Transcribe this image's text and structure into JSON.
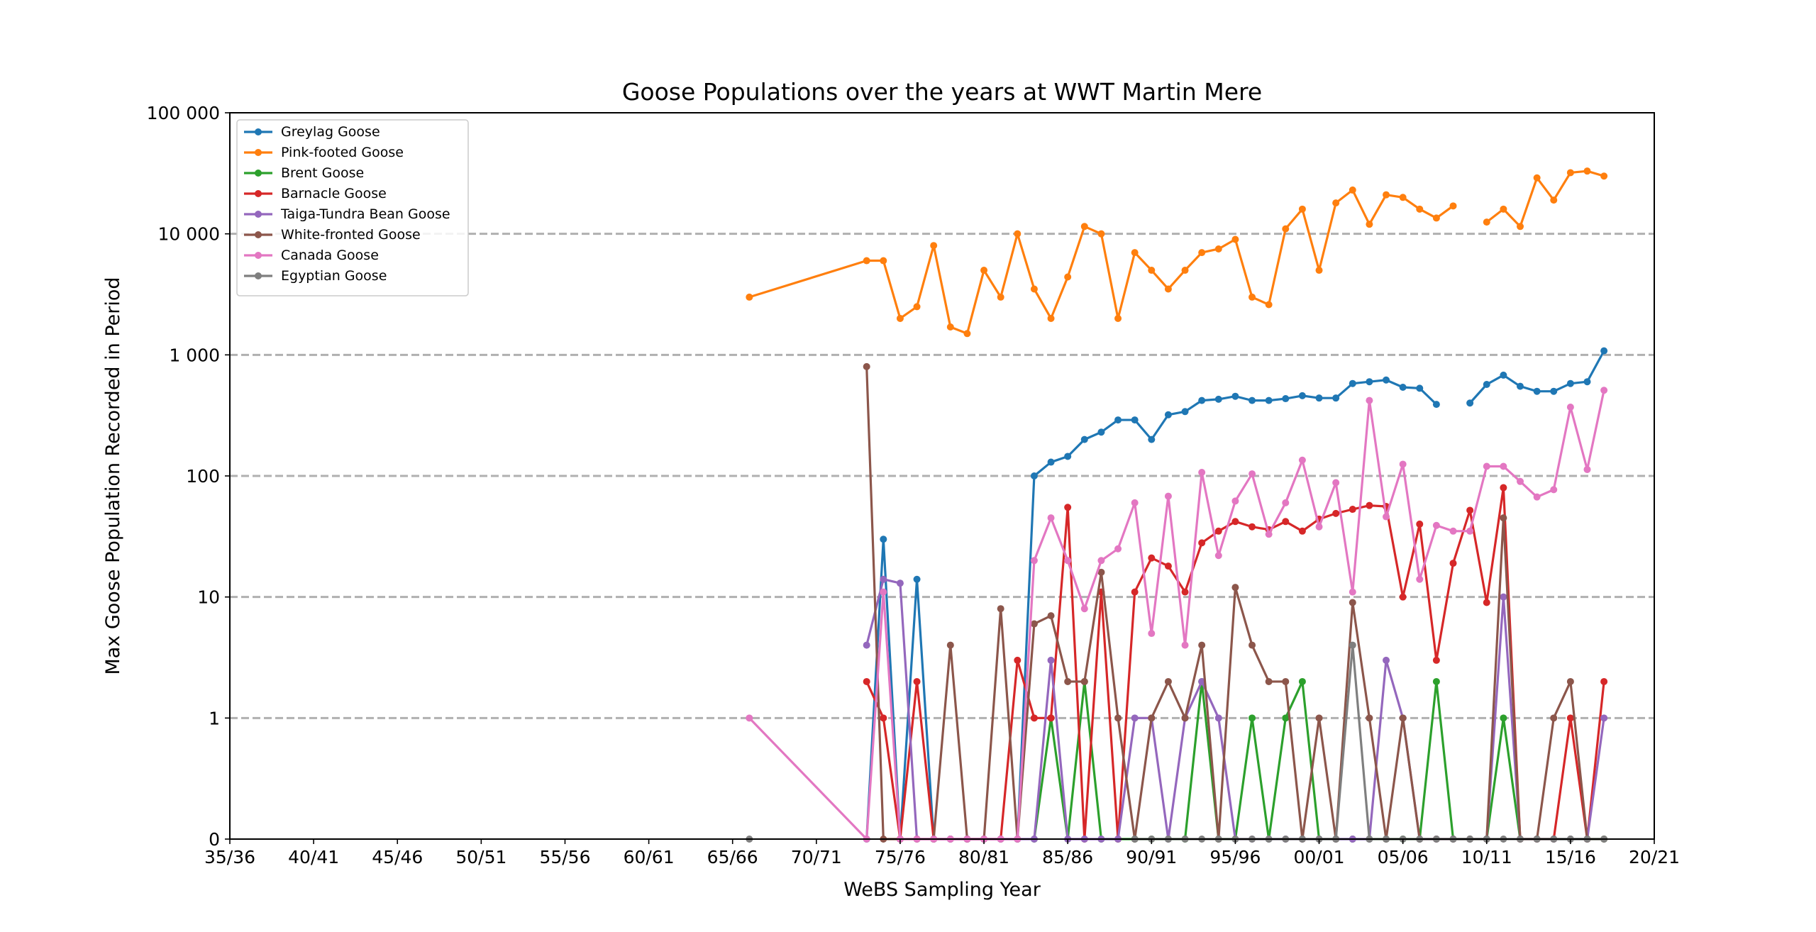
{
  "chart_data": {
    "type": "line",
    "title": "Goose Populations over the years at WWT Martin Mere",
    "xlabel": "WeBS Sampling Year",
    "ylabel": "Max Goose Population Recorded in Period",
    "x_tick_labels": [
      "35/36",
      "40/41",
      "45/46",
      "50/51",
      "55/56",
      "60/61",
      "65/66",
      "70/71",
      "75/76",
      "80/81",
      "85/86",
      "90/91",
      "95/96",
      "00/01",
      "05/06",
      "10/11",
      "15/16",
      "20/21"
    ],
    "x_range": [
      1935,
      2020
    ],
    "y_scale": "symlog",
    "y_ticks": [
      0,
      1,
      10,
      100,
      1000,
      10000,
      100000
    ],
    "y_tick_labels": [
      "0",
      "1",
      "10",
      "100",
      "1 000",
      "10 000",
      "100 000"
    ],
    "grid": "horizontal-dashed",
    "legend_position": "top-left",
    "x": [
      1966,
      1973,
      1974,
      1975,
      1976,
      1977,
      1978,
      1979,
      1980,
      1981,
      1982,
      1983,
      1984,
      1985,
      1986,
      1987,
      1988,
      1989,
      1990,
      1991,
      1992,
      1993,
      1994,
      1995,
      1996,
      1997,
      1998,
      1999,
      2000,
      2001,
      2002,
      2003,
      2004,
      2005,
      2006,
      2007,
      2008,
      2009,
      2010,
      2011,
      2012,
      2013,
      2014,
      2015,
      2016,
      2017
    ],
    "series": [
      {
        "name": "Greylag Goose",
        "color": "#1f77b4",
        "values": [
          null,
          0,
          30,
          0,
          14,
          0,
          0,
          0,
          0,
          0,
          0,
          100,
          130,
          145,
          200,
          230,
          290,
          290,
          200,
          320,
          340,
          420,
          430,
          455,
          420,
          420,
          435,
          460,
          440,
          440,
          580,
          600,
          620,
          540,
          530,
          390,
          null,
          400,
          570,
          680,
          550,
          500,
          500,
          580,
          600,
          1080
        ]
      },
      {
        "name": "Pink-footed Goose",
        "color": "#ff7f0e",
        "values": [
          3000,
          6000,
          6000,
          2000,
          2500,
          8000,
          1700,
          1500,
          5000,
          3000,
          10000,
          3500,
          2000,
          4400,
          11500,
          10000,
          2000,
          7000,
          5000,
          3500,
          5000,
          7000,
          7500,
          9000,
          3000,
          2600,
          11000,
          16000,
          5000,
          18000,
          23000,
          12000,
          21000,
          20000,
          16000,
          13500,
          17000,
          null,
          12500,
          16000,
          11500,
          29000,
          19000,
          32000,
          33000,
          30000
        ]
      },
      {
        "name": "Brent Goose",
        "color": "#2ca02c",
        "values": [
          null,
          null,
          null,
          null,
          null,
          null,
          null,
          null,
          null,
          null,
          null,
          0,
          1,
          0,
          2,
          0,
          0,
          0,
          0,
          0,
          0,
          2,
          0,
          0,
          1,
          0,
          1,
          2,
          0,
          0,
          0,
          0,
          0,
          0,
          0,
          2,
          0,
          0,
          0,
          1,
          0,
          0,
          0,
          0,
          0,
          0
        ]
      },
      {
        "name": "Barnacle Goose",
        "color": "#d62728",
        "values": [
          null,
          2,
          1,
          0,
          2,
          0,
          0,
          0,
          0,
          0,
          3,
          1,
          1,
          55,
          0,
          11,
          0,
          11,
          21,
          18,
          11,
          28,
          35,
          42,
          38,
          36,
          42,
          35,
          44,
          49,
          53,
          57,
          56,
          10,
          40,
          3,
          19,
          52,
          9,
          80,
          0,
          0,
          0,
          1,
          0,
          2
        ]
      },
      {
        "name": "Taiga-Tundra Bean Goose",
        "color": "#9467bd",
        "values": [
          null,
          4,
          14,
          13,
          0,
          0,
          0,
          0,
          0,
          0,
          0,
          0,
          3,
          0,
          0,
          0,
          0,
          1,
          1,
          0,
          1,
          2,
          1,
          0,
          0,
          0,
          0,
          0,
          0,
          0,
          0,
          0,
          3,
          1,
          0,
          0,
          0,
          0,
          0,
          10,
          0,
          0,
          0,
          0,
          0,
          1
        ]
      },
      {
        "name": "White-fronted Goose",
        "color": "#8c564b",
        "values": [
          null,
          800,
          0,
          0,
          0,
          0,
          4,
          0,
          0,
          8,
          0,
          6,
          7,
          2,
          2,
          16,
          1,
          0,
          1,
          2,
          1,
          4,
          0,
          12,
          4,
          2,
          2,
          0,
          1,
          0,
          9,
          1,
          0,
          1,
          0,
          0,
          0,
          0,
          0,
          45,
          0,
          0,
          1,
          2,
          0,
          0
        ]
      },
      {
        "name": "Canada Goose",
        "color": "#e377c2",
        "values": [
          1,
          0,
          11,
          0,
          0,
          0,
          0,
          0,
          0,
          0,
          0,
          20,
          45,
          20,
          8,
          20,
          25,
          60,
          5,
          68,
          4,
          107,
          22,
          62,
          104,
          33,
          60,
          135,
          38,
          88,
          11,
          420,
          46,
          125,
          14,
          39,
          35,
          35,
          120,
          120,
          90,
          67,
          77,
          370,
          113,
          510
        ]
      },
      {
        "name": "Egyptian Goose",
        "color": "#7f7f7f",
        "values": [
          0,
          null,
          null,
          null,
          null,
          null,
          null,
          null,
          null,
          null,
          null,
          null,
          null,
          null,
          null,
          null,
          null,
          0,
          0,
          0,
          0,
          0,
          0,
          0,
          0,
          0,
          0,
          0,
          0,
          0,
          4,
          0,
          0,
          0,
          0,
          0,
          0,
          0,
          0,
          0,
          0,
          0,
          0,
          0,
          0,
          0
        ]
      }
    ]
  }
}
